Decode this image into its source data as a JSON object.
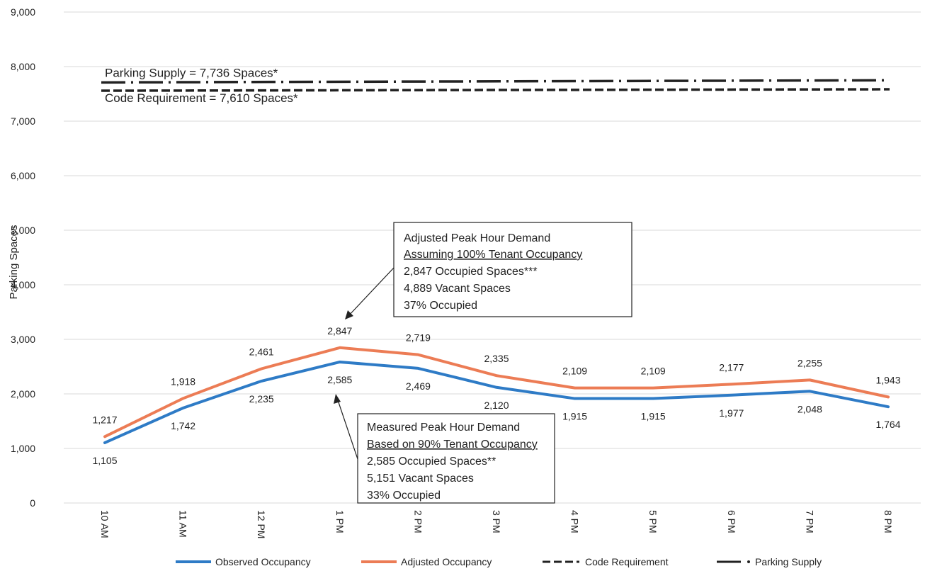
{
  "chart_data": {
    "type": "line",
    "ylabel": "Parking Spaces",
    "xlabel": "",
    "ylim": [
      0,
      9000
    ],
    "yticks": [
      "0",
      "1,000",
      "2,000",
      "3,000",
      "4,000",
      "5,000",
      "6,000",
      "7,000",
      "8,000",
      "9,000"
    ],
    "grid": true,
    "legend_position": "bottom",
    "categories": [
      "10 AM",
      "11 AM",
      "12 PM",
      "1 PM",
      "2 PM",
      "3 PM",
      "4 PM",
      "5 PM",
      "6 PM",
      "7 PM",
      "8 PM"
    ],
    "series": [
      {
        "name": "Observed Occupancy",
        "color": "#2e7bc6",
        "values": [
          1105,
          1742,
          2235,
          2585,
          2469,
          2120,
          1915,
          1915,
          1977,
          2048,
          1764
        ],
        "labels": [
          "1,105",
          "1,742",
          "2,235",
          "2,585",
          "2,469",
          "2,120",
          "1,915",
          "1,915",
          "1,977",
          "2,048",
          "1,764"
        ]
      },
      {
        "name": "Adjusted Occupancy",
        "color": "#ec7c55",
        "values": [
          1217,
          1918,
          2461,
          2847,
          2719,
          2335,
          2109,
          2109,
          2177,
          2255,
          1943
        ],
        "labels": [
          "1,217",
          "1,918",
          "2,461",
          "2,847",
          "2,719",
          "2,335",
          "2,109",
          "2,109",
          "2,177",
          "2,255",
          "1,943"
        ]
      },
      {
        "name": "Code Requirement",
        "color": "#222222",
        "style": "dashed",
        "value": 7610,
        "annotation": "Code Requirement = 7,610 Spaces*"
      },
      {
        "name": "Parking Supply",
        "color": "#222222",
        "style": "dash-dot",
        "value": 7736,
        "annotation": "Parking Supply = 7,736 Spaces*"
      }
    ],
    "annotations": {
      "adjusted_callout": {
        "lines": [
          "Adjusted Peak Hour Demand",
          "Assuming 100% Tenant Occupancy",
          "2,847 Occupied Spaces***",
          "4,889 Vacant Spaces",
          "37% Occupied"
        ],
        "underlined_line": 1
      },
      "measured_callout": {
        "lines": [
          "Measured Peak Hour Demand",
          "Based on 90% Tenant Occupancy",
          "2,585 Occupied Spaces**",
          "5,151 Vacant Spaces",
          "33% Occupied"
        ],
        "underlined_line": 1
      }
    }
  }
}
